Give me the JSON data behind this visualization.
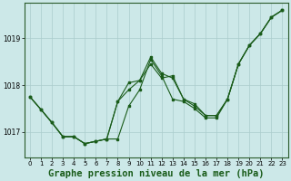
{
  "background_color": "#cce8e8",
  "grid_color": "#aacccc",
  "line_color": "#1a5c1a",
  "title": "Graphe pression niveau de la mer (hPa)",
  "title_fontsize": 7.5,
  "ytick_labels": [
    "1017",
    "1018",
    "1019"
  ],
  "yticks": [
    1017,
    1018,
    1019
  ],
  "xticks": [
    0,
    1,
    2,
    3,
    4,
    5,
    6,
    7,
    8,
    9,
    10,
    11,
    12,
    13,
    14,
    15,
    16,
    17,
    18,
    19,
    20,
    21,
    22,
    23
  ],
  "ylim": [
    1016.45,
    1019.75
  ],
  "xlim": [
    -0.5,
    23.5
  ],
  "line1_x": [
    0,
    1,
    2,
    3,
    4,
    5,
    6,
    7,
    8,
    9,
    10,
    11,
    12,
    13,
    14,
    15,
    16,
    17,
    18,
    19,
    20,
    21,
    22,
    23
  ],
  "line1_y": [
    1017.75,
    1017.48,
    1017.2,
    1016.9,
    1016.9,
    1016.75,
    1016.8,
    1016.85,
    1016.85,
    1017.55,
    1017.9,
    1018.55,
    1018.2,
    1017.7,
    1017.65,
    1017.5,
    1017.3,
    1017.3,
    1017.7,
    1018.45,
    1018.85,
    1019.1,
    1019.45,
    1019.6
  ],
  "line2_x": [
    0,
    1,
    2,
    3,
    4,
    5,
    6,
    7,
    8,
    9,
    10,
    11,
    12,
    13,
    14,
    15,
    16,
    17,
    18,
    19,
    20,
    21,
    22,
    23
  ],
  "line2_y": [
    1017.75,
    1017.48,
    1017.2,
    1016.9,
    1016.9,
    1016.75,
    1016.8,
    1016.85,
    1017.65,
    1017.9,
    1018.1,
    1018.45,
    1018.15,
    1018.2,
    1017.7,
    1017.55,
    1017.35,
    1017.35,
    1017.7,
    1018.45,
    1018.85,
    1019.1,
    1019.45,
    1019.6
  ],
  "line3_x": [
    0,
    1,
    2,
    3,
    4,
    5,
    6,
    7,
    8,
    9,
    10,
    11,
    12,
    13,
    14,
    15,
    16,
    17,
    18,
    19,
    20,
    21,
    22,
    23
  ],
  "line3_y": [
    1017.75,
    1017.48,
    1017.2,
    1016.9,
    1016.9,
    1016.75,
    1016.8,
    1016.85,
    1017.65,
    1018.05,
    1018.1,
    1018.6,
    1018.25,
    1018.15,
    1017.7,
    1017.6,
    1017.35,
    1017.35,
    1017.7,
    1018.45,
    1018.85,
    1019.1,
    1019.45,
    1019.6
  ]
}
